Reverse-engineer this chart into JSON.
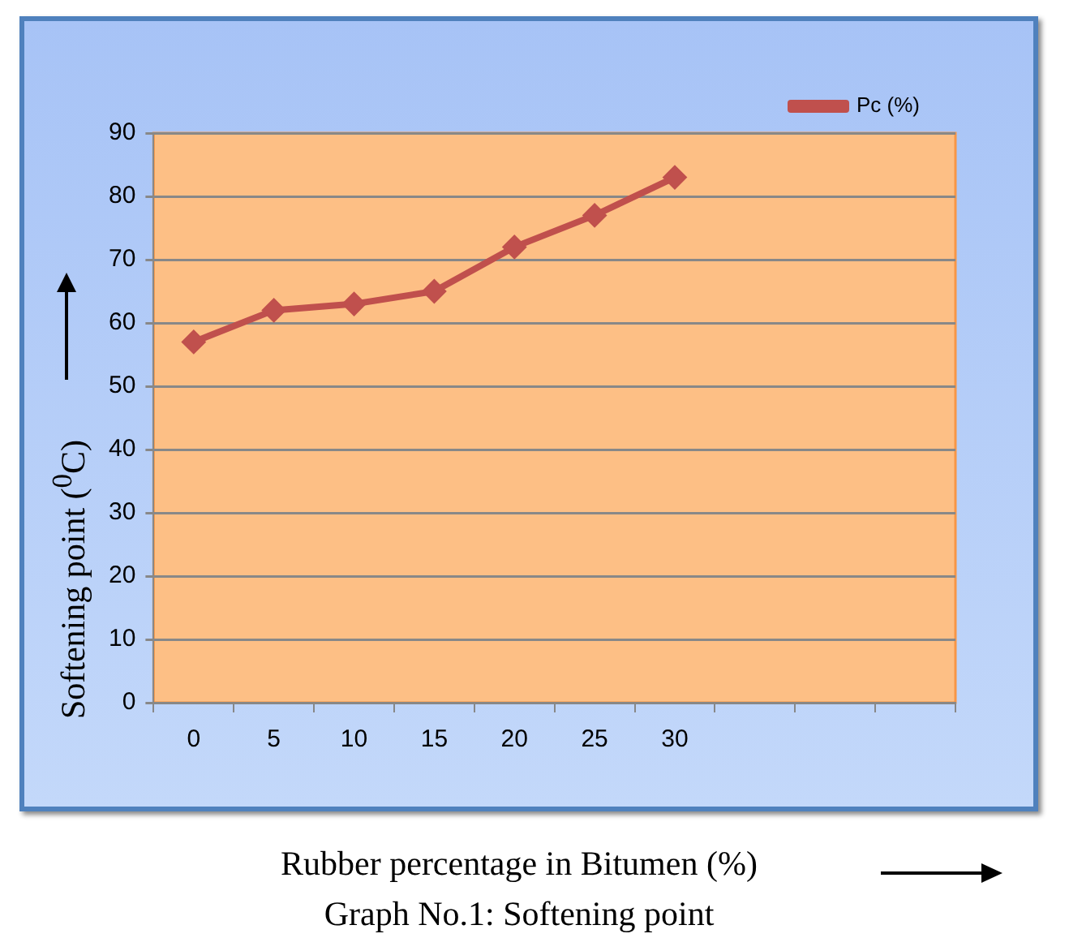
{
  "chart_data": {
    "type": "line",
    "xlabel": "Rubber percentage in Bitumen  (%)",
    "ylabel": "Softening point ($^{0}$C)",
    "annotations": [
      "Graph No.1: Softening point"
    ],
    "categories": [
      "0",
      "5",
      "10",
      "15",
      "20",
      "25",
      "30",
      null,
      null,
      null
    ],
    "series": [
      {
        "name": "Pc (%)",
        "color": "#c0504d",
        "values": [
          57,
          62,
          63,
          65,
          72,
          77,
          83,
          null,
          null,
          null
        ]
      }
    ],
    "ylim": [
      0,
      90
    ],
    "yticks": [
      0,
      10,
      20,
      30,
      40,
      50,
      60,
      70,
      80,
      90
    ],
    "grid": "y",
    "legend": "top right",
    "marker": "diamond",
    "line_style": "solid"
  }
}
